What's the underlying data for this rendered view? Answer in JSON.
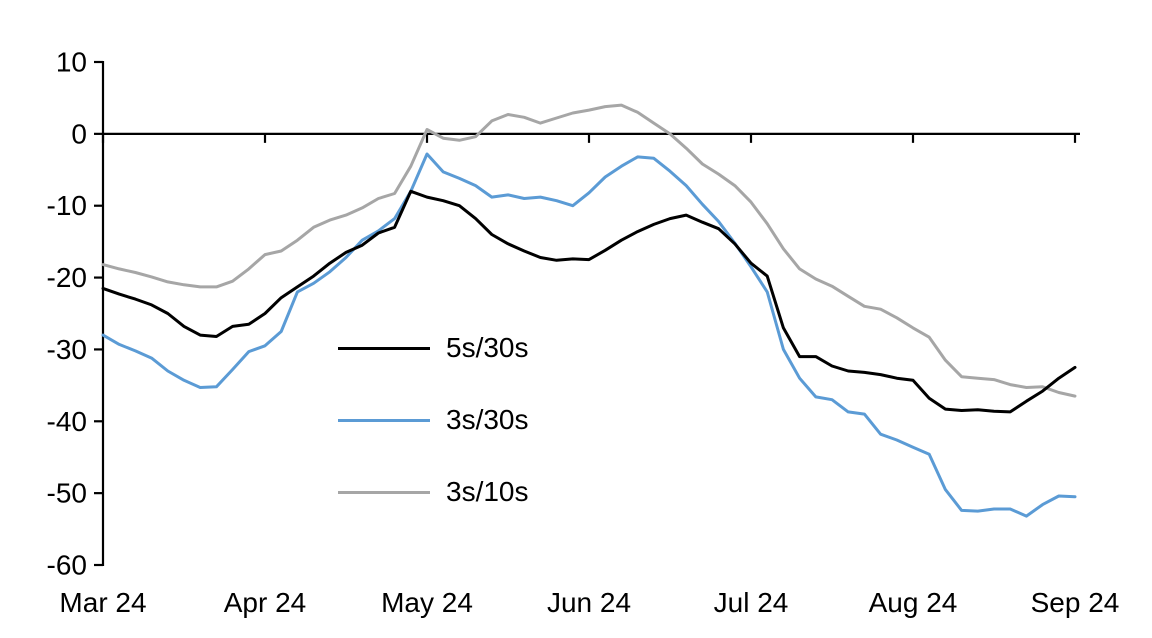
{
  "chart_data": {
    "type": "line",
    "title": "",
    "xlabel": "",
    "ylabel": "",
    "grid": false,
    "background": "#ffffff",
    "axis_color": "#000000",
    "legend_position": "inside-left-middle",
    "x_tick_labels": [
      "Mar 24",
      "Apr 24",
      "May 24",
      "Jun 24",
      "Jul 24",
      "Aug 24",
      "Sep 24"
    ],
    "y_ticks": [
      10,
      0,
      -10,
      -20,
      -30,
      -40,
      -50,
      -60
    ],
    "y_tick_labels": [
      "10",
      "0",
      "-10",
      "-20",
      "-30",
      "-40",
      "-50",
      "-60"
    ],
    "ylim": [
      -60,
      10
    ],
    "xlim_months": [
      0,
      6
    ],
    "x_step_months": 0.1,
    "series": [
      {
        "name": "5s/30s",
        "color": "#000000",
        "values": [
          -21.5,
          -22.3,
          -23.0,
          -23.8,
          -25.0,
          -26.8,
          -28.0,
          -28.2,
          -26.8,
          -26.5,
          -25.0,
          -22.8,
          -21.3,
          -19.8,
          -18.0,
          -16.5,
          -15.5,
          -13.8,
          -13.0,
          -8.0,
          -8.8,
          -9.3,
          -10.0,
          -11.8,
          -14.0,
          -15.3,
          -16.3,
          -17.2,
          -17.6,
          -17.4,
          -17.5,
          -16.2,
          -14.8,
          -13.6,
          -12.6,
          -11.8,
          -11.3,
          -12.3,
          -13.2,
          -15.3,
          -18.0,
          -19.8,
          -27.0,
          -31.0,
          -31.0,
          -32.3,
          -33.0,
          -33.2,
          -33.5,
          -34.0,
          -34.3,
          -36.8,
          -38.3,
          -38.5,
          -38.4,
          -38.6,
          -38.7,
          -37.2,
          -35.8,
          -34.0,
          -32.5
        ]
      },
      {
        "name": "3s/30s",
        "color": "#5B9BD5",
        "values": [
          -28.0,
          -29.3,
          -30.2,
          -31.2,
          -33.0,
          -34.3,
          -35.3,
          -35.2,
          -32.8,
          -30.3,
          -29.5,
          -27.5,
          -22.0,
          -20.8,
          -19.2,
          -17.2,
          -14.8,
          -13.5,
          -11.8,
          -8.0,
          -2.8,
          -5.3,
          -6.2,
          -7.2,
          -8.8,
          -8.5,
          -9.0,
          -8.8,
          -9.3,
          -10.0,
          -8.2,
          -6.0,
          -4.5,
          -3.2,
          -3.4,
          -5.2,
          -7.2,
          -9.8,
          -12.2,
          -15.2,
          -18.5,
          -22.0,
          -30.0,
          -34.0,
          -36.6,
          -37.0,
          -38.7,
          -39.0,
          -41.8,
          -42.6,
          -43.6,
          -44.6,
          -49.5,
          -52.4,
          -52.5,
          -52.2,
          -52.2,
          -53.2,
          -51.6,
          -50.4,
          -50.5
        ]
      },
      {
        "name": "3s/10s",
        "color": "#A6A6A6",
        "values": [
          -18.2,
          -18.8,
          -19.3,
          -19.9,
          -20.6,
          -21.0,
          -21.3,
          -21.3,
          -20.5,
          -18.8,
          -16.8,
          -16.3,
          -14.8,
          -13.0,
          -12.0,
          -11.3,
          -10.3,
          -9.0,
          -8.3,
          -4.5,
          0.6,
          -0.6,
          -0.9,
          -0.4,
          1.8,
          2.7,
          2.3,
          1.5,
          2.2,
          2.9,
          3.3,
          3.8,
          4.0,
          3.0,
          1.5,
          0.0,
          -2.0,
          -4.2,
          -5.6,
          -7.2,
          -9.5,
          -12.5,
          -16.0,
          -18.8,
          -20.2,
          -21.2,
          -22.6,
          -24.0,
          -24.4,
          -25.6,
          -27.0,
          -28.3,
          -31.5,
          -33.8,
          -34.0,
          -34.2,
          -34.9,
          -35.3,
          -35.2,
          -36.0,
          -36.5
        ]
      }
    ]
  },
  "legend": {
    "items": [
      {
        "label": "5s/30s",
        "color": "#000000"
      },
      {
        "label": "3s/30s",
        "color": "#5B9BD5"
      },
      {
        "label": "3s/10s",
        "color": "#A6A6A6"
      }
    ]
  }
}
